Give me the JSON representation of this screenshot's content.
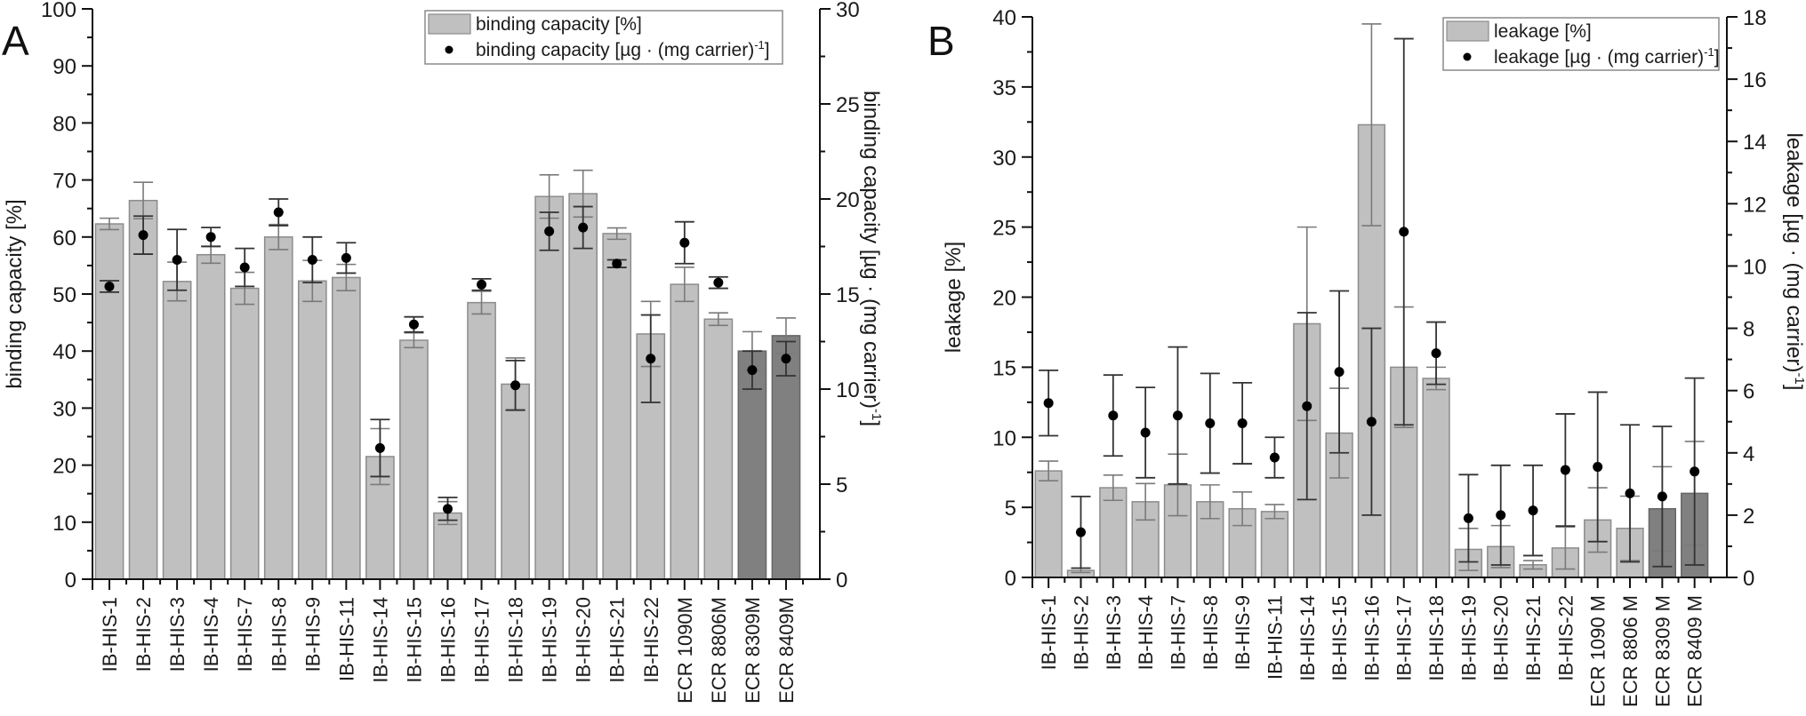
{
  "chart_data": [
    {
      "type": "bar",
      "panel": "A",
      "title": "",
      "xlabel": "",
      "ylabel": "binding capacity [%]",
      "ylabel_right": "binding capacity [µg · (mg carrier)-1]",
      "ylim": [
        0,
        100
      ],
      "ylim_right": [
        0,
        30
      ],
      "yticks": [
        0,
        10,
        20,
        30,
        40,
        50,
        60,
        70,
        80,
        90,
        100
      ],
      "yticks_right": [
        0,
        5,
        10,
        15,
        20,
        25,
        30
      ],
      "grid": false,
      "legend_position": "top-right",
      "categories": [
        "IB-HIS-1",
        "IB-HIS-2",
        "IB-HIS-3",
        "IB-HIS-4",
        "IB-HIS-7",
        "IB-HIS-8",
        "IB-HIS-9",
        "IB-HIS-11",
        "IB-HIS-14",
        "IB-HIS-15",
        "IB-HIS-16",
        "IB-HIS-17",
        "IB-HIS-18",
        "IB-HIS-19",
        "IB-HIS-20",
        "IB-HIS-21",
        "IB-HIS-22",
        "ECR 1090M",
        "ECR 8806M",
        "ECR 8309M",
        "ECR 8409M"
      ],
      "highlight_categories": [
        "ECR 8309M",
        "ECR 8409M"
      ],
      "series": [
        {
          "name": "binding capacity [%]",
          "kind": "bar",
          "axis": "left",
          "color": "#c0c0c0",
          "highlight_color": "#808080",
          "values": [
            62.3,
            66.4,
            52.2,
            56.9,
            51.0,
            60.0,
            52.3,
            52.9,
            21.5,
            41.9,
            11.6,
            48.5,
            34.2,
            67.1,
            67.6,
            60.6,
            43.0,
            51.7,
            45.6,
            40.0,
            42.7
          ],
          "errors": [
            1.0,
            3.2,
            3.4,
            1.5,
            2.8,
            2.2,
            3.6,
            2.3,
            4.9,
            1.3,
            2.0,
            2.0,
            4.6,
            3.8,
            4.1,
            1.0,
            5.7,
            3.0,
            1.1,
            3.4,
            3.1
          ]
        },
        {
          "name": "binding capacity [µg · (mg carrier)-1]",
          "kind": "point",
          "axis": "right",
          "color": "#000000",
          "values": [
            15.4,
            18.1,
            16.8,
            18.0,
            16.4,
            19.3,
            16.8,
            16.9,
            6.9,
            13.4,
            3.7,
            15.5,
            10.2,
            18.3,
            18.5,
            16.6,
            11.6,
            17.7,
            15.6,
            11.0,
            11.6
          ],
          "errors": [
            0.3,
            1.0,
            1.6,
            0.5,
            1.0,
            0.7,
            1.2,
            0.8,
            1.5,
            0.4,
            0.6,
            0.3,
            1.3,
            1.0,
            1.1,
            0.2,
            2.3,
            1.1,
            0.3,
            1.0,
            0.9
          ]
        }
      ],
      "legend": [
        "binding capacity [%]",
        "binding capacity [µg · (mg carrier)-1]"
      ]
    },
    {
      "type": "bar",
      "panel": "B",
      "title": "",
      "xlabel": "",
      "ylabel": "leakage [%]",
      "ylabel_right": "leakage [µg · (mg carrier)-1]",
      "ylim": [
        0,
        40
      ],
      "ylim_right": [
        0,
        18
      ],
      "yticks": [
        0,
        5,
        10,
        15,
        20,
        25,
        30,
        35,
        40
      ],
      "yticks_right": [
        0,
        2,
        4,
        6,
        8,
        10,
        12,
        14,
        16,
        18
      ],
      "grid": false,
      "legend_position": "top-right",
      "categories": [
        "IB-HIS-1",
        "IB-HIS-2",
        "IB-HIS-3",
        "IB-HIS-4",
        "IB-HIS-7",
        "IB-HIS-8",
        "IB-HIS-9",
        "IB-HIS-11",
        "IB-HIS-14",
        "IB-HIS-15",
        "IB-HIS-16",
        "IB-HIS-17",
        "IB-HIS-18",
        "IB-HIS-19",
        "IB-HIS-20",
        "IB-HIS-21",
        "IB-HIS-22",
        "ECR 1090 M",
        "ECR 8806 M",
        "ECR 8309 M",
        "ECR 8409 M"
      ],
      "highlight_categories": [
        "ECR 8309 M",
        "ECR 8409 M"
      ],
      "series": [
        {
          "name": "leakage [%]",
          "kind": "bar",
          "axis": "left",
          "color": "#c0c0c0",
          "highlight_color": "#808080",
          "values": [
            7.6,
            0.5,
            6.4,
            5.4,
            6.6,
            5.4,
            4.9,
            4.7,
            18.1,
            10.3,
            32.3,
            15.0,
            14.2,
            2.0,
            2.2,
            0.9,
            2.1,
            4.1,
            3.5,
            4.9,
            6.0
          ],
          "errors": [
            0.7,
            0.15,
            0.9,
            1.3,
            2.2,
            1.2,
            1.2,
            0.5,
            6.9,
            3.2,
            7.2,
            4.3,
            0.8,
            1.5,
            1.5,
            0.3,
            1.5,
            2.3,
            2.3,
            3.0,
            3.7
          ]
        },
        {
          "name": "leakage [µg · (mg carrier)-1]",
          "kind": "point",
          "axis": "right",
          "color": "#000000",
          "values": [
            5.6,
            1.45,
            5.2,
            4.65,
            5.2,
            4.95,
            4.95,
            3.85,
            5.5,
            6.6,
            5.0,
            11.1,
            7.2,
            1.9,
            2.0,
            2.15,
            3.45,
            3.55,
            2.7,
            2.6,
            3.4
          ],
          "errors": [
            1.05,
            1.15,
            1.3,
            1.45,
            2.2,
            1.6,
            1.3,
            0.65,
            3.0,
            2.6,
            3.0,
            6.2,
            1.0,
            1.4,
            1.6,
            1.45,
            1.8,
            2.4,
            2.2,
            2.25,
            3.0
          ]
        }
      ],
      "legend": [
        "leakage [%]",
        "leakage [µg · (mg carrier)-1]"
      ]
    }
  ],
  "panels": {
    "a_letter": "A",
    "b_letter": "B"
  }
}
